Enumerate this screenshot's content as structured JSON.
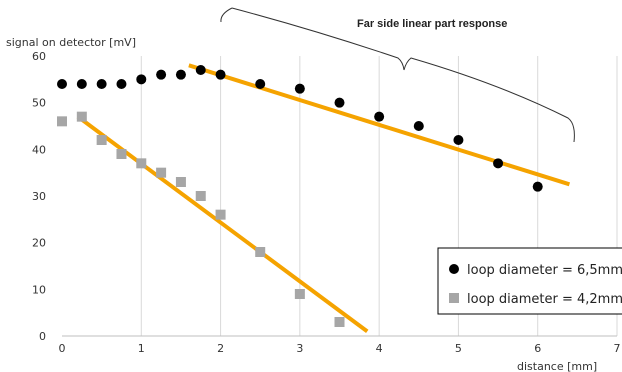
{
  "chart_data": {
    "type": "scatter",
    "xlabel": "distance [mm]",
    "ylabel": "signal on detector [mV]",
    "xlim": [
      0,
      7
    ],
    "ylim": [
      0,
      60
    ],
    "x_ticks": [
      "0",
      "1",
      "2",
      "3",
      "4",
      "5",
      "6",
      "7"
    ],
    "y_ticks": [
      "0",
      "10",
      "20",
      "30",
      "40",
      "50",
      "60"
    ],
    "grid": "vertical",
    "legend_position": "bottom-right",
    "annotation": "Far side linear part response",
    "series": [
      {
        "name": "loop diameter = 6,5mm",
        "marker": "circle",
        "color": "#000000",
        "points": [
          [
            0,
            54
          ],
          [
            0.25,
            54
          ],
          [
            0.5,
            54
          ],
          [
            0.75,
            54
          ],
          [
            1,
            55
          ],
          [
            1.25,
            56
          ],
          [
            1.5,
            56
          ],
          [
            1.75,
            57
          ],
          [
            2,
            56
          ],
          [
            2.5,
            54
          ],
          [
            3,
            53
          ],
          [
            3.5,
            50
          ],
          [
            4,
            47
          ],
          [
            4.5,
            45
          ],
          [
            5,
            42
          ],
          [
            5.5,
            37
          ],
          [
            6,
            32
          ]
        ]
      },
      {
        "name": "loop diameter = 4,2mm",
        "marker": "square",
        "color": "#A6A6A6",
        "points": [
          [
            0,
            46
          ],
          [
            0.25,
            47
          ],
          [
            0.5,
            42
          ],
          [
            0.75,
            39
          ],
          [
            1,
            37
          ],
          [
            1.25,
            35
          ],
          [
            1.5,
            33
          ],
          [
            1.75,
            30
          ],
          [
            2,
            26
          ],
          [
            2.5,
            18
          ],
          [
            3,
            9
          ],
          [
            3.5,
            3
          ]
        ]
      }
    ],
    "trendlines": [
      {
        "color": "#F5A300",
        "x": [
          1.6,
          6.4
        ],
        "y": [
          58,
          32.5
        ]
      },
      {
        "color": "#F5A300",
        "x": [
          0.2,
          3.85
        ],
        "y": [
          47,
          1
        ]
      }
    ]
  }
}
